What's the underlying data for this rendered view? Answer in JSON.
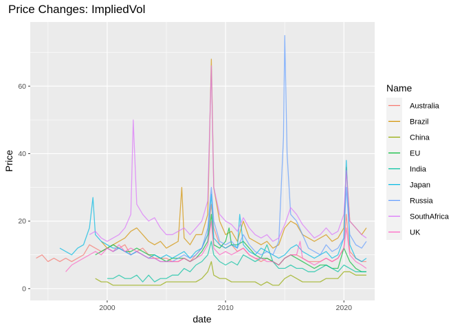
{
  "chart_data": {
    "type": "line",
    "title": "Price Changes: ImpliedVol",
    "xlabel": "date",
    "ylabel": "Price",
    "xlim": [
      1993.5,
      2022.6
    ],
    "ylim": [
      -3.5,
      79
    ],
    "x_ticks": [
      2000,
      2010,
      2020
    ],
    "x_tick_labels": [
      "2000",
      "2010",
      "2020"
    ],
    "y_ticks": [
      0,
      20,
      40,
      60
    ],
    "y_tick_labels": [
      "0",
      "20",
      "40",
      "60"
    ],
    "grid": true,
    "panel_background": "#ebebeb",
    "legend": {
      "title": "Name",
      "placement": "right"
    },
    "series": [
      {
        "name": "Australia",
        "color": "#F8766D",
        "x": [
          1994.0,
          1994.5,
          1995.0,
          1995.5,
          1996.0,
          1996.5,
          1997.0,
          1997.5,
          1998.0,
          1998.5,
          1999.0,
          1999.5,
          2000.0,
          2000.5,
          2001.0,
          2001.5,
          2002.0,
          2002.5,
          2003.0,
          2003.5,
          2004.0,
          2004.5,
          2005.0,
          2005.5,
          2006.0,
          2006.5,
          2007.0,
          2007.5,
          2008.0,
          2008.5,
          2008.8,
          2009.0,
          2009.5,
          2010.0,
          2010.5,
          2011.0,
          2011.5,
          2012.0,
          2012.5,
          2013.0,
          2013.5,
          2014.0,
          2014.5,
          2015.0,
          2015.5,
          2016.0,
          2016.5,
          2017.0,
          2017.5,
          2018.0,
          2018.5,
          2019.0,
          2019.5,
          2020.0,
          2020.2,
          2020.5,
          2021.0,
          2021.5,
          2021.9
        ],
        "y": [
          9,
          10,
          8,
          9,
          8,
          9,
          8,
          9,
          10,
          13,
          12,
          11,
          12,
          11,
          12,
          13,
          10,
          11,
          12,
          10,
          9,
          9,
          9,
          8,
          8,
          9,
          8,
          10,
          12,
          16,
          25,
          18,
          13,
          12,
          13,
          11,
          12,
          10,
          9,
          8,
          9,
          8,
          7,
          9,
          10,
          10,
          9,
          8,
          8,
          8,
          9,
          8,
          9,
          12,
          22,
          11,
          9,
          8,
          8
        ]
      },
      {
        "name": "Brazil",
        "color": "#D39200",
        "x": [
          1999.5,
          2000.0,
          2000.5,
          2001.0,
          2001.5,
          2002.0,
          2002.5,
          2003.0,
          2003.5,
          2004.0,
          2004.5,
          2005.0,
          2005.5,
          2006.0,
          2006.3,
          2006.5,
          2007.0,
          2007.5,
          2008.0,
          2008.5,
          2008.8,
          2009.0,
          2009.5,
          2010.0,
          2010.5,
          2011.0,
          2011.5,
          2012.0,
          2012.5,
          2013.0,
          2013.5,
          2014.0,
          2014.5,
          2015.0,
          2015.5,
          2016.0,
          2016.5,
          2017.0,
          2017.5,
          2018.0,
          2018.5,
          2019.0,
          2019.5,
          2020.0,
          2020.2,
          2020.5,
          2021.0,
          2021.5,
          2021.9
        ],
        "y": [
          14,
          12,
          13,
          14,
          15,
          17,
          18,
          16,
          14,
          13,
          14,
          12,
          13,
          14,
          30,
          15,
          13,
          16,
          16,
          22,
          68,
          30,
          20,
          16,
          17,
          14,
          20,
          15,
          14,
          13,
          14,
          12,
          13,
          18,
          20,
          19,
          16,
          15,
          14,
          15,
          16,
          14,
          15,
          18,
          36,
          20,
          18,
          16,
          18
        ]
      },
      {
        "name": "China",
        "color": "#93AA00",
        "x": [
          1999.0,
          1999.5,
          2000.0,
          2000.5,
          2001.0,
          2001.5,
          2002.0,
          2002.5,
          2003.0,
          2003.5,
          2004.0,
          2004.5,
          2005.0,
          2005.5,
          2006.0,
          2006.5,
          2007.0,
          2007.5,
          2008.0,
          2008.5,
          2008.8,
          2009.0,
          2009.5,
          2010.0,
          2010.5,
          2011.0,
          2011.5,
          2012.0,
          2012.5,
          2013.0,
          2013.5,
          2014.0,
          2014.5,
          2015.0,
          2015.5,
          2016.0,
          2016.5,
          2017.0,
          2017.5,
          2018.0,
          2018.5,
          2019.0,
          2019.5,
          2020.0,
          2020.5,
          2021.0,
          2021.5,
          2021.9
        ],
        "y": [
          3,
          2,
          2,
          1,
          1,
          1,
          1,
          1,
          1,
          1,
          1,
          1,
          2,
          2,
          2,
          2,
          2,
          2,
          3,
          5,
          8,
          4,
          3,
          3,
          2,
          2,
          2,
          2,
          2,
          1,
          2,
          1,
          1,
          3,
          4,
          3,
          2,
          2,
          2,
          2,
          3,
          3,
          3,
          5,
          5,
          4,
          4,
          4
        ]
      },
      {
        "name": "EU",
        "color": "#00BA38",
        "x": [
          1999.0,
          1999.5,
          2000.0,
          2000.5,
          2001.0,
          2001.5,
          2002.0,
          2002.5,
          2003.0,
          2003.5,
          2004.0,
          2004.5,
          2005.0,
          2005.5,
          2006.0,
          2006.5,
          2007.0,
          2007.5,
          2008.0,
          2008.5,
          2008.8,
          2009.0,
          2009.5,
          2010.0,
          2010.3,
          2010.5,
          2011.0,
          2011.5,
          2012.0,
          2012.5,
          2013.0,
          2013.5,
          2014.0,
          2014.5,
          2015.0,
          2015.5,
          2016.0,
          2016.5,
          2017.0,
          2017.5,
          2018.0,
          2018.5,
          2019.0,
          2019.5,
          2020.0,
          2020.5,
          2021.0,
          2021.5,
          2021.9
        ],
        "y": [
          10,
          11,
          12,
          13,
          12,
          11,
          11,
          12,
          11,
          10,
          10,
          9,
          8,
          9,
          9,
          9,
          8,
          9,
          11,
          14,
          22,
          13,
          12,
          14,
          18,
          13,
          13,
          14,
          12,
          10,
          9,
          9,
          8,
          7,
          9,
          10,
          9,
          8,
          7,
          6,
          7,
          7,
          6,
          6,
          12,
          8,
          6,
          5,
          5
        ]
      },
      {
        "name": "India",
        "color": "#00C19F",
        "x": [
          2000.0,
          2000.5,
          2001.0,
          2001.5,
          2002.0,
          2002.5,
          2003.0,
          2003.5,
          2004.0,
          2004.5,
          2005.0,
          2005.5,
          2006.0,
          2006.5,
          2007.0,
          2007.5,
          2008.0,
          2008.5,
          2008.8,
          2009.0,
          2009.5,
          2010.0,
          2010.5,
          2011.0,
          2011.5,
          2012.0,
          2012.5,
          2013.0,
          2013.5,
          2014.0,
          2014.5,
          2015.0,
          2015.5,
          2016.0,
          2016.5,
          2017.0,
          2017.5,
          2018.0,
          2018.5,
          2019.0,
          2019.5,
          2020.0,
          2020.5,
          2021.0,
          2021.5,
          2021.9
        ],
        "y": [
          3,
          3,
          4,
          3,
          3,
          4,
          2,
          4,
          2,
          3,
          3,
          4,
          4,
          6,
          5,
          7,
          8,
          10,
          14,
          10,
          8,
          7,
          8,
          7,
          10,
          9,
          8,
          9,
          13,
          8,
          6,
          6,
          7,
          6,
          6,
          5,
          5,
          6,
          7,
          6,
          5,
          7,
          6,
          5,
          5,
          5
        ]
      },
      {
        "name": "Japan",
        "color": "#00B9E3",
        "x": [
          1996.0,
          1996.5,
          1997.0,
          1997.5,
          1998.0,
          1998.5,
          1998.8,
          1999.0,
          1999.5,
          2000.0,
          2000.5,
          2001.0,
          2001.5,
          2002.0,
          2002.5,
          2003.0,
          2003.5,
          2004.0,
          2004.5,
          2005.0,
          2005.5,
          2006.0,
          2006.5,
          2007.0,
          2007.5,
          2008.0,
          2008.5,
          2008.8,
          2009.0,
          2009.5,
          2010.0,
          2010.5,
          2011.0,
          2011.2,
          2011.5,
          2012.0,
          2012.5,
          2013.0,
          2013.5,
          2014.0,
          2014.5,
          2015.0,
          2015.5,
          2016.0,
          2016.5,
          2017.0,
          2017.5,
          2018.0,
          2018.5,
          2019.0,
          2019.5,
          2020.0,
          2020.2,
          2020.5,
          2021.0,
          2021.5,
          2021.9
        ],
        "y": [
          12,
          11,
          10,
          12,
          13,
          18,
          27,
          16,
          14,
          13,
          12,
          12,
          11,
          10,
          11,
          10,
          9,
          10,
          9,
          10,
          9,
          10,
          11,
          9,
          11,
          12,
          16,
          28,
          15,
          13,
          12,
          13,
          12,
          22,
          13,
          11,
          10,
          12,
          11,
          10,
          9,
          10,
          12,
          13,
          11,
          10,
          9,
          10,
          11,
          9,
          10,
          15,
          38,
          13,
          9,
          8,
          9
        ]
      },
      {
        "name": "Russia",
        "color": "#619CFF",
        "x": [
          2000.0,
          2000.5,
          2001.0,
          2001.5,
          2002.0,
          2002.5,
          2003.0,
          2003.5,
          2004.0,
          2004.5,
          2005.0,
          2005.5,
          2006.0,
          2006.5,
          2007.0,
          2007.5,
          2008.0,
          2008.5,
          2008.8,
          2009.0,
          2009.5,
          2010.0,
          2010.5,
          2011.0,
          2011.5,
          2012.0,
          2012.5,
          2013.0,
          2013.5,
          2014.0,
          2014.5,
          2014.9,
          2015.0,
          2015.2,
          2015.5,
          2016.0,
          2016.5,
          2017.0,
          2017.5,
          2018.0,
          2018.5,
          2019.0,
          2019.5,
          2020.0,
          2020.2,
          2020.5,
          2021.0,
          2021.5,
          2021.9
        ],
        "y": [
          12,
          11,
          12,
          11,
          10,
          11,
          10,
          9,
          9,
          8,
          8,
          8,
          9,
          10,
          9,
          10,
          12,
          18,
          30,
          20,
          14,
          13,
          14,
          12,
          16,
          13,
          11,
          10,
          11,
          10,
          14,
          45,
          75,
          40,
          22,
          20,
          16,
          12,
          11,
          10,
          13,
          11,
          12,
          15,
          30,
          16,
          13,
          12,
          14
        ]
      },
      {
        "name": "SouthAfrica",
        "color": "#DB72FB",
        "x": [
          1998.5,
          1999.0,
          1999.5,
          2000.0,
          2000.5,
          2001.0,
          2001.5,
          2002.0,
          2002.2,
          2002.5,
          2003.0,
          2003.5,
          2004.0,
          2004.5,
          2005.0,
          2005.5,
          2006.0,
          2006.5,
          2007.0,
          2007.5,
          2008.0,
          2008.5,
          2008.8,
          2009.0,
          2009.5,
          2010.0,
          2010.5,
          2011.0,
          2011.5,
          2012.0,
          2012.5,
          2013.0,
          2013.5,
          2014.0,
          2014.5,
          2015.0,
          2015.5,
          2016.0,
          2016.5,
          2017.0,
          2017.5,
          2018.0,
          2018.5,
          2019.0,
          2019.5,
          2020.0,
          2020.2,
          2020.5,
          2021.0,
          2021.5,
          2021.9
        ],
        "y": [
          16,
          17,
          15,
          14,
          15,
          16,
          18,
          22,
          50,
          25,
          22,
          20,
          21,
          18,
          16,
          16,
          17,
          18,
          16,
          18,
          20,
          26,
          66,
          30,
          22,
          20,
          19,
          17,
          21,
          18,
          16,
          15,
          16,
          14,
          15,
          19,
          24,
          22,
          19,
          17,
          15,
          16,
          18,
          16,
          17,
          22,
          35,
          20,
          18,
          16,
          15
        ]
      },
      {
        "name": "UK",
        "color": "#FF61C3",
        "x": [
          1996.5,
          1997.0,
          1997.5,
          1998.0,
          1998.5,
          1999.0,
          1999.5,
          2000.0,
          2000.5,
          2001.0,
          2001.5,
          2002.0,
          2002.5,
          2003.0,
          2003.5,
          2004.0,
          2004.5,
          2005.0,
          2005.5,
          2006.0,
          2006.5,
          2007.0,
          2007.5,
          2008.0,
          2008.5,
          2008.8,
          2009.0,
          2009.5,
          2010.0,
          2010.5,
          2011.0,
          2011.5,
          2012.0,
          2012.5,
          2013.0,
          2013.5,
          2014.0,
          2014.5,
          2015.0,
          2015.5,
          2016.0,
          2016.3,
          2016.5,
          2017.0,
          2017.5,
          2018.0,
          2018.5,
          2019.0,
          2019.5,
          2020.0,
          2020.2,
          2020.5,
          2021.0,
          2021.5,
          2021.9
        ],
        "y": [
          5,
          7,
          8,
          9,
          10,
          11,
          10,
          12,
          11,
          13,
          11,
          12,
          11,
          10,
          9,
          9,
          8,
          8,
          8,
          8,
          9,
          8,
          9,
          10,
          13,
          20,
          12,
          10,
          11,
          10,
          11,
          12,
          10,
          9,
          9,
          8,
          8,
          7,
          9,
          10,
          10,
          14,
          9,
          8,
          7,
          8,
          9,
          8,
          9,
          12,
          18,
          10,
          8,
          7,
          6
        ]
      }
    ]
  }
}
